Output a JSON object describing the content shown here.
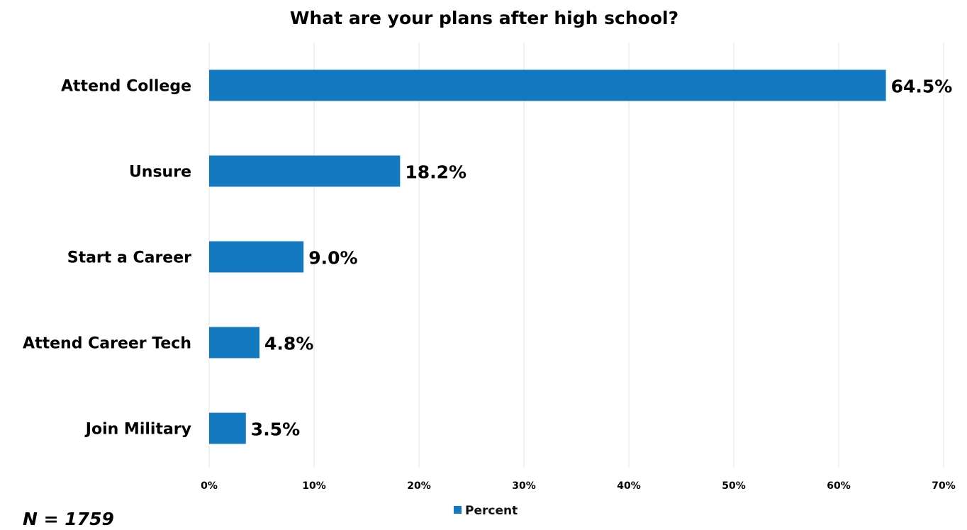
{
  "chart_data": {
    "type": "bar",
    "orientation": "horizontal",
    "title": "What are your plans after high school?",
    "categories": [
      "Attend College",
      "Unsure",
      "Start a Career",
      "Attend Career Tech",
      "Join Military"
    ],
    "series": [
      {
        "name": "Percent",
        "values": [
          64.5,
          18.2,
          9.0,
          4.8,
          3.5
        ],
        "color": "#137ac1"
      }
    ],
    "data_labels": [
      "64.5%",
      "18.2%",
      "9.0%",
      "4.8%",
      "3.5%"
    ],
    "xlim": [
      0,
      70
    ],
    "x_ticks": [
      0,
      10,
      20,
      30,
      40,
      50,
      60,
      70
    ],
    "x_tick_labels": [
      "0%",
      "10%",
      "20%",
      "30%",
      "40%",
      "50%",
      "60%",
      "70%"
    ],
    "grid": "vertical",
    "legend": {
      "position": "bottom",
      "entries": [
        "Percent"
      ]
    }
  },
  "footnote": "N = 1759"
}
